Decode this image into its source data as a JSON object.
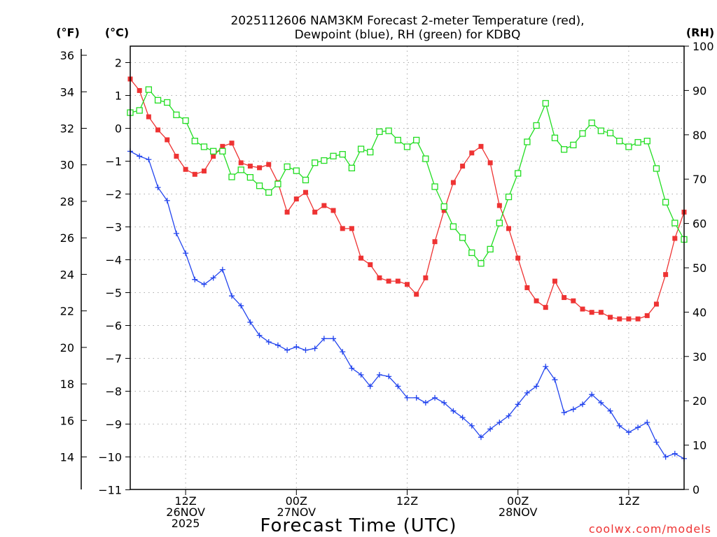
{
  "chart_data": {
    "type": "line",
    "title_line1": "2025112606 NAM3KM Forecast 2-meter Temperature (red),",
    "title_line2": "Dewpoint (blue), RH (green) for KDBQ",
    "xlabel": "Forecast Time (UTC)",
    "credit": "coolwx.com/models",
    "units": {
      "fahrenheit": "(°F)",
      "celsius": "(°C)",
      "rh": "(RH)"
    },
    "x_range_hours": [
      0,
      60
    ],
    "celsius_range": [
      -11,
      2.4
    ],
    "rh_range": [
      0,
      100
    ],
    "celsius_ticks": [
      "2",
      "1",
      "0",
      "−1",
      "−2",
      "−3",
      "−4",
      "−5",
      "−6",
      "−7",
      "−8",
      "−9",
      "−10",
      "−11"
    ],
    "fahrenheit_ticks": [
      "36",
      "34",
      "32",
      "30",
      "28",
      "26",
      "24",
      "22",
      "20",
      "18",
      "16",
      "14"
    ],
    "rh_ticks": [
      "100",
      "90",
      "80",
      "70",
      "60",
      "50",
      "40",
      "30",
      "20",
      "10",
      "0"
    ],
    "x_ticks": [
      {
        "hour": 6,
        "lines": [
          "12Z",
          "26NOV",
          "2025"
        ]
      },
      {
        "hour": 18,
        "lines": [
          "00Z",
          "27NOV"
        ]
      },
      {
        "hour": 30,
        "lines": [
          "12Z"
        ]
      },
      {
        "hour": 42,
        "lines": [
          "00Z",
          "28NOV"
        ]
      },
      {
        "hour": 54,
        "lines": [
          "12Z"
        ]
      }
    ],
    "series": [
      {
        "name": "2-meter Temperature",
        "axis": "celsius",
        "color": "#ee3333",
        "marker": "filled-square",
        "values": [
          1.5,
          1.15,
          0.35,
          -0.05,
          -0.35,
          -0.85,
          -1.25,
          -1.4,
          -1.3,
          -0.85,
          -0.55,
          -0.45,
          -1.05,
          -1.15,
          -1.2,
          -1.1,
          -1.65,
          -2.55,
          -2.15,
          -1.95,
          -2.55,
          -2.35,
          -2.5,
          -3.05,
          -3.05,
          -3.95,
          -4.15,
          -4.55,
          -4.65,
          -4.65,
          -4.75,
          -5.05,
          -4.55,
          -3.45,
          -2.5,
          -1.65,
          -1.15,
          -0.75,
          -0.55,
          -1.05,
          -2.35,
          -3.05,
          -3.95,
          -4.85,
          -5.25,
          -5.45,
          -4.65,
          -5.15,
          -5.25,
          -5.5,
          -5.6,
          -5.6,
          -5.75,
          -5.8,
          -5.8,
          -5.8,
          -5.7,
          -5.35,
          -4.45,
          -3.35,
          -2.55
        ]
      },
      {
        "name": "Dewpoint",
        "axis": "celsius",
        "color": "#2244ee",
        "marker": "plus",
        "values": [
          -0.7,
          -0.85,
          -0.95,
          -1.8,
          -2.2,
          -3.2,
          -3.8,
          -4.6,
          -4.75,
          -4.55,
          -4.3,
          -5.1,
          -5.4,
          -5.9,
          -6.3,
          -6.5,
          -6.6,
          -6.75,
          -6.65,
          -6.75,
          -6.7,
          -6.4,
          -6.4,
          -6.8,
          -7.3,
          -7.5,
          -7.85,
          -7.5,
          -7.55,
          -7.85,
          -8.2,
          -8.2,
          -8.35,
          -8.2,
          -8.35,
          -8.6,
          -8.8,
          -9.05,
          -9.4,
          -9.15,
          -8.95,
          -8.75,
          -8.4,
          -8.05,
          -7.85,
          -7.25,
          -7.65,
          -8.65,
          -8.55,
          -8.4,
          -8.1,
          -8.35,
          -8.6,
          -9.05,
          -9.25,
          -9.1,
          -8.95,
          -9.55,
          -10.0,
          -9.9,
          -10.05
        ]
      },
      {
        "name": "RH",
        "axis": "rh",
        "color": "#22dd22",
        "marker": "open-square",
        "values": [
          85,
          85.5,
          90.2,
          87.8,
          87.3,
          84.5,
          83.2,
          78.6,
          77.3,
          76.3,
          76.3,
          70.5,
          72.1,
          70.4,
          68.5,
          67,
          68.9,
          72.8,
          71.9,
          69.8,
          73.7,
          74.2,
          75.2,
          75.6,
          72.5,
          76.8,
          76.1,
          80.7,
          80.9,
          78.8,
          77.3,
          78.8,
          74.6,
          68.3,
          63.8,
          59.3,
          56.8,
          53.4,
          51,
          54.2,
          60.1,
          66,
          71.3,
          78.4,
          82.1,
          87.1,
          79.3,
          76.7,
          77.7,
          80.3,
          82.7,
          80.9,
          80.4,
          78.6,
          77.3,
          78.3,
          78.6,
          72.4,
          64.8,
          60.1,
          56.4
        ]
      }
    ]
  }
}
